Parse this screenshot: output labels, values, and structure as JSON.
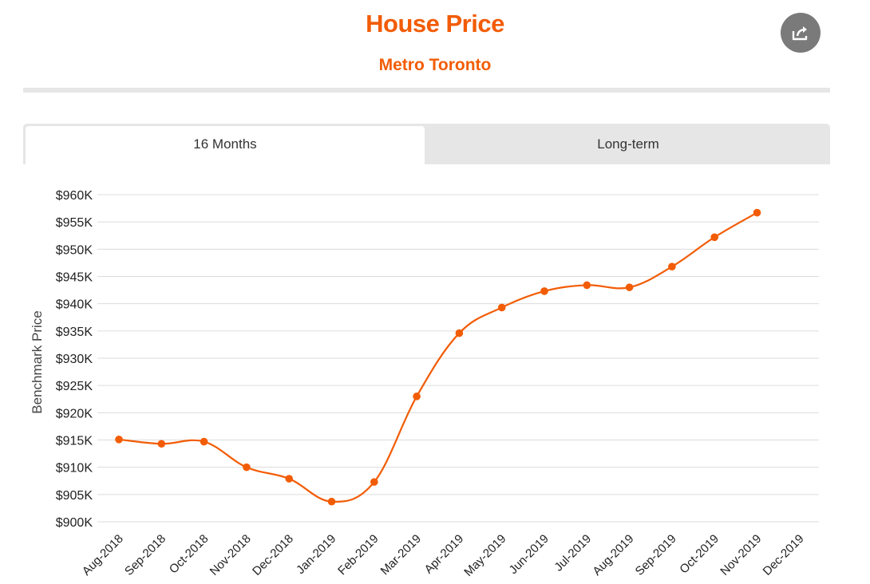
{
  "header": {
    "title": "House Price",
    "subtitle": "Metro Toronto",
    "share_icon": "share-icon"
  },
  "tabs": [
    {
      "label": "16 Months",
      "active": true
    },
    {
      "label": "Long-term",
      "active": false
    }
  ],
  "colors": {
    "accent": "#F25C05",
    "tab_bg": "#e6e6e6",
    "grid": "#dcdcdc",
    "share_bg": "#7a7a7a"
  },
  "chart_data": {
    "type": "line",
    "title": "",
    "xlabel": "",
    "ylabel": "Benchmark Price",
    "categories": [
      "Aug-2018",
      "Sep-2018",
      "Oct-2018",
      "Nov-2018",
      "Dec-2018",
      "Jan-2019",
      "Feb-2019",
      "Mar-2019",
      "Apr-2019",
      "May-2019",
      "Jun-2019",
      "Jul-2019",
      "Aug-2019",
      "Sep-2019",
      "Oct-2019",
      "Nov-2019",
      "Dec-2019"
    ],
    "series": [
      {
        "values": [
          915100,
          914300,
          914700,
          910000,
          907900,
          903700,
          907300,
          923000,
          934600,
          939300,
          942300,
          943400,
          943000,
          946800,
          952200,
          956700,
          null
        ]
      }
    ],
    "ylim": [
      900000,
      960000
    ],
    "yticks": [
      900000,
      905000,
      910000,
      915000,
      920000,
      925000,
      930000,
      935000,
      940000,
      945000,
      950000,
      955000,
      960000
    ],
    "ytick_labels": [
      "$900K",
      "$905K",
      "$910K",
      "$915K",
      "$920K",
      "$925K",
      "$930K",
      "$935K",
      "$940K",
      "$945K",
      "$950K",
      "$955K",
      "$960K"
    ],
    "grid": true,
    "legend": "none"
  }
}
